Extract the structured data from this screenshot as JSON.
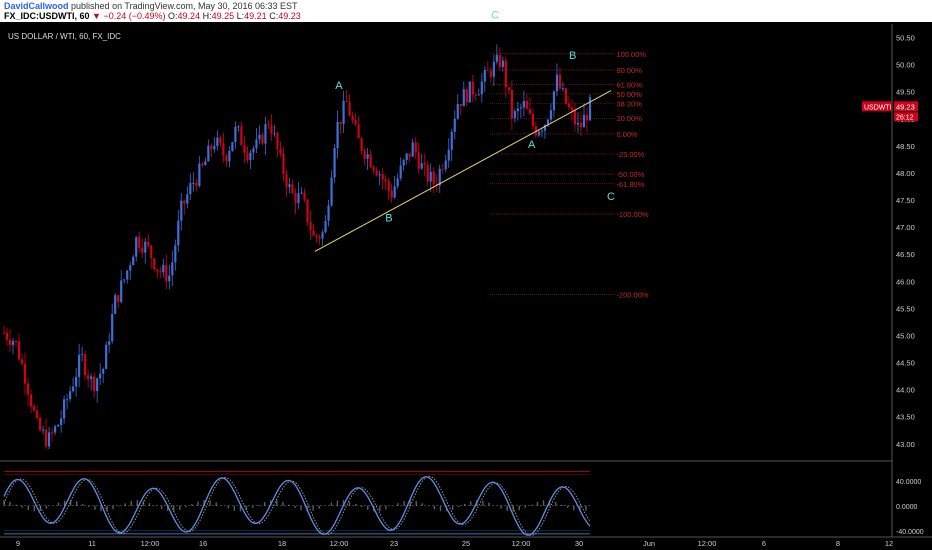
{
  "header": {
    "author": "DavidCallwood",
    "published": "published on TradingView.com, May 30, 2016 06:33 EST",
    "symbol": "FX_IDC:USDWTI, 60",
    "change_arrow": "▼",
    "change": "−0.24 (−0.49%)",
    "o_label": "O:",
    "o_value": "49.24",
    "h_label": "H:",
    "h_value": "49.25",
    "l_label": "L:",
    "l_value": "49.21",
    "c_label": "C:",
    "c_value": "49.23"
  },
  "chart_title": "US DOLLAR / WTI, 60, FX_IDC",
  "colors": {
    "background": "#000000",
    "up_candle": "#3d6fd6",
    "down_candle": "#d0021b",
    "trendline": "#e6d96b",
    "fib": "#c62828",
    "wave_label": "#5ce0e0",
    "osc_line": "#5b8fe8",
    "osc_signal": "#9aa3b0",
    "hist": "#888888"
  },
  "chart_data": {
    "type": "candlestick",
    "title": "US DOLLAR / WTI, 60, FX_IDC",
    "y_ticks": [
      43.0,
      43.5,
      44.0,
      44.5,
      45.0,
      45.5,
      46.0,
      46.5,
      47.0,
      47.5,
      48.0,
      48.5,
      49.0,
      49.5,
      50.0,
      50.5
    ],
    "ylim": [
      42.7,
      50.75
    ],
    "x_ticks": [
      "9",
      "11",
      "12:00",
      "16",
      "18",
      "12:00",
      "23",
      "25",
      "12:00",
      "30",
      "Jun",
      "12:00",
      "6",
      "8",
      "12"
    ],
    "price_path": [
      [
        45.05,
        44.9
      ],
      [
        44.2,
        43.3
      ],
      [
        43.05,
        43.4
      ],
      [
        44.0,
        44.6
      ],
      [
        44.1,
        44.4
      ],
      [
        45.6,
        46.1
      ],
      [
        46.8,
        46.6
      ],
      [
        46.2,
        46.1
      ],
      [
        47.3,
        47.8
      ],
      [
        48.1,
        48.6
      ],
      [
        48.3,
        48.8
      ],
      [
        48.4,
        48.5
      ],
      [
        49.0,
        48.2
      ],
      [
        47.6,
        47.5
      ],
      [
        46.8,
        46.9
      ],
      [
        48.8,
        49.3
      ],
      [
        48.6,
        48.3
      ],
      [
        48.0,
        47.6
      ],
      [
        48.1,
        48.5
      ],
      [
        48.0,
        47.8
      ],
      [
        48.4,
        49.3
      ],
      [
        49.5,
        49.6
      ],
      [
        49.9,
        50.1
      ],
      [
        49.0,
        49.25
      ],
      [
        48.8,
        48.95
      ],
      [
        49.7,
        49.2
      ],
      [
        48.8,
        49.23
      ]
    ],
    "last_price": "49.23",
    "last_badge_symbol": "USDWTI",
    "countdown": "26:12",
    "fib_levels": [
      {
        "label": "100.00%",
        "value": 50.2
      },
      {
        "label": "80.00%",
        "value": 49.9
      },
      {
        "label": "61.80%",
        "value": 49.63
      },
      {
        "label": "50.00%",
        "value": 49.46
      },
      {
        "label": "38.20%",
        "value": 49.28
      },
      {
        "label": "20.00%",
        "value": 49.01
      },
      {
        "label": "0.00%",
        "value": 48.72
      },
      {
        "label": "-25.00%",
        "value": 48.35
      },
      {
        "label": "-50.00%",
        "value": 47.98
      },
      {
        "label": "-61.80%",
        "value": 47.8
      },
      {
        "label": "-100.00%",
        "value": 47.24
      },
      {
        "label": "-200.00%",
        "value": 45.76
      }
    ],
    "trendline": {
      "from": {
        "x_frac": 0.353,
        "y": 46.55
      },
      "to": {
        "x_frac": 0.685,
        "y": 49.52
      }
    },
    "wave_labels": [
      {
        "text": "A",
        "x_frac": 0.38,
        "y": 49.55
      },
      {
        "text": "B",
        "x_frac": 0.436,
        "y": 47.1
      },
      {
        "text": "C",
        "x_frac": 0.555,
        "y": 50.85
      },
      {
        "text": "B",
        "x_frac": 0.642,
        "y": 50.1
      },
      {
        "text": "A",
        "x_frac": 0.596,
        "y": 48.46
      },
      {
        "text": "C",
        "x_frac": 0.685,
        "y": 47.5
      }
    ],
    "oscillator": {
      "y_ticks": [
        "40.0000",
        "0.0000",
        "-40.0000"
      ],
      "ylim": [
        -50,
        70
      ],
      "upper_band": 55,
      "lower_band": -45
    }
  }
}
